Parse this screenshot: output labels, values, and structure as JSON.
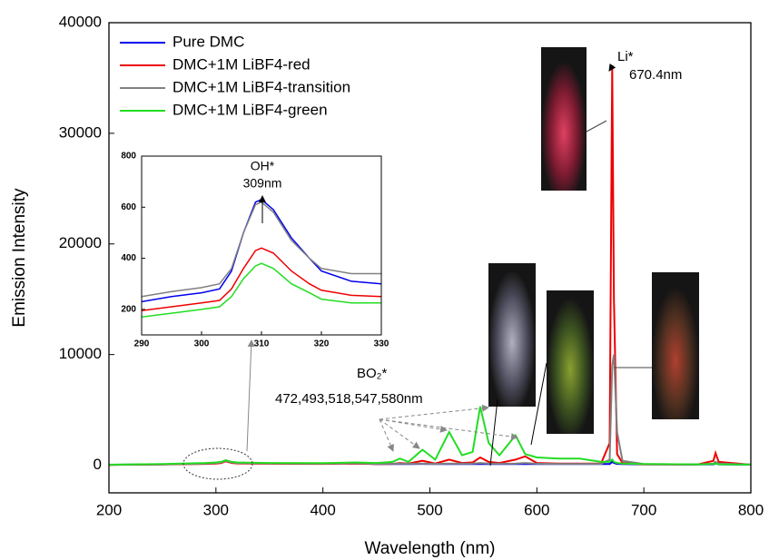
{
  "chart_data": [
    {
      "type": "line",
      "x_label": "Wavelength (nm)",
      "y_label": "Emission Intensity",
      "x": [
        200,
        250,
        290,
        300,
        305,
        309,
        315,
        320,
        330,
        350,
        400,
        430,
        450,
        465,
        472,
        480,
        493,
        505,
        518,
        530,
        540,
        547,
        555,
        565,
        580,
        589,
        600,
        620,
        640,
        660,
        668,
        670.4,
        672,
        675,
        680,
        700,
        750,
        765,
        767,
        770,
        800
      ],
      "series": [
        {
          "name": "Pure DMC",
          "color": "#0000ee",
          "values": [
            40,
            80,
            150,
            200,
            250,
            420,
            240,
            200,
            170,
            160,
            140,
            170,
            110,
            110,
            120,
            110,
            120,
            100,
            110,
            100,
            100,
            120,
            100,
            100,
            100,
            120,
            100,
            100,
            100,
            100,
            100,
            300,
            200,
            120,
            100,
            80,
            60,
            80,
            150,
            80,
            40
          ]
        },
        {
          "name": "DMC+1M LiBF4-red",
          "color": "#ee0000",
          "values": [
            30,
            60,
            120,
            150,
            200,
            350,
            200,
            160,
            140,
            130,
            120,
            150,
            100,
            120,
            200,
            150,
            400,
            150,
            500,
            200,
            250,
            700,
            300,
            200,
            500,
            800,
            200,
            150,
            150,
            150,
            2000,
            36000,
            15000,
            1000,
            200,
            80,
            60,
            400,
            1100,
            300,
            40
          ]
        },
        {
          "name": "DMC+1M LiBF4-transition",
          "color": "#808080",
          "values": [
            40,
            80,
            150,
            200,
            250,
            400,
            250,
            200,
            180,
            170,
            150,
            180,
            120,
            130,
            150,
            130,
            150,
            120,
            150,
            130,
            140,
            200,
            150,
            130,
            150,
            200,
            130,
            120,
            120,
            120,
            500,
            9000,
            10000,
            3000,
            400,
            100,
            70,
            150,
            300,
            150,
            50
          ]
        },
        {
          "name": "DMC+1M LiBF4-green",
          "color": "#22dd22",
          "values": [
            50,
            100,
            200,
            250,
            300,
            450,
            300,
            250,
            220,
            200,
            180,
            250,
            200,
            300,
            600,
            300,
            1400,
            500,
            3000,
            900,
            1200,
            5300,
            2000,
            900,
            2700,
            1000,
            700,
            600,
            600,
            300,
            300,
            500,
            300,
            200,
            150,
            100,
            80,
            100,
            150,
            80,
            50
          ]
        }
      ],
      "xlim": [
        200,
        800
      ],
      "xticks": [
        200,
        300,
        400,
        500,
        600,
        700,
        800
      ],
      "ylim": [
        -2500,
        40000
      ],
      "yticks": [
        0,
        10000,
        20000,
        30000,
        40000
      ],
      "legend": "upper left",
      "annotations": [
        "Li*",
        "670.4nm",
        "BO₂*",
        "472,493,518,547,580nm"
      ]
    },
    {
      "type": "line",
      "x": [
        290,
        295,
        300,
        303,
        305,
        307,
        309,
        310,
        312,
        315,
        318,
        320,
        325,
        330
      ],
      "series": [
        {
          "color": "#0000ee",
          "values": [
            230,
            250,
            265,
            280,
            350,
            500,
            620,
            630,
            590,
            480,
            400,
            350,
            310,
            300
          ]
        },
        {
          "color": "#ee0000",
          "values": [
            195,
            210,
            225,
            235,
            280,
            360,
            430,
            440,
            420,
            350,
            300,
            275,
            255,
            250
          ]
        },
        {
          "color": "#808080",
          "values": [
            250,
            270,
            285,
            300,
            360,
            500,
            610,
            620,
            580,
            470,
            400,
            360,
            340,
            340
          ]
        },
        {
          "color": "#22dd22",
          "values": [
            170,
            185,
            200,
            210,
            250,
            320,
            370,
            380,
            360,
            300,
            265,
            240,
            225,
            225
          ]
        }
      ],
      "xlim": [
        290,
        330
      ],
      "xticks": [
        290,
        300,
        310,
        320,
        330
      ],
      "ylim": [
        100,
        800
      ],
      "yticks": [
        200,
        400,
        600,
        800
      ],
      "annotations": [
        "OH*",
        "309nm"
      ]
    }
  ]
}
